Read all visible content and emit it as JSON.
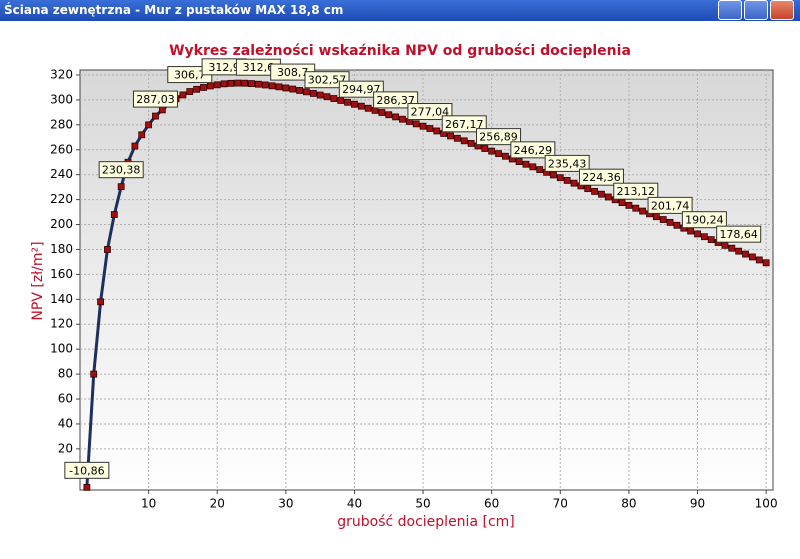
{
  "window": {
    "title": "Ściana zewnętrzna - Mur z pustaków MAX 18,8 cm"
  },
  "chart_data": {
    "type": "line",
    "title": "Wykres zależności wskaźnika NPV od grubości docieplenia",
    "x_label": "grubość docieplenia [cm]",
    "y_label": "NPV [zł/m²]",
    "x": [
      1,
      2,
      3,
      4,
      5,
      6,
      7,
      8,
      9,
      10,
      11,
      12,
      13,
      14,
      15,
      16,
      17,
      18,
      19,
      20,
      21,
      22,
      23,
      24,
      25,
      26,
      27,
      28,
      29,
      30,
      31,
      32,
      33,
      34,
      35,
      36,
      37,
      38,
      39,
      40,
      41,
      42,
      43,
      44,
      45,
      46,
      47,
      48,
      49,
      50,
      51,
      52,
      53,
      54,
      55,
      56,
      57,
      58,
      59,
      60,
      61,
      62,
      63,
      64,
      65,
      66,
      67,
      68,
      69,
      70,
      71,
      72,
      73,
      74,
      75,
      76,
      77,
      78,
      79,
      80,
      81,
      82,
      83,
      84,
      85,
      86,
      87,
      88,
      89,
      90,
      91,
      92,
      93,
      94,
      95,
      96,
      97,
      98,
      99,
      100
    ],
    "values": [
      -10.86,
      80,
      138,
      180,
      208,
      230.38,
      250,
      263,
      272,
      280,
      287.03,
      292,
      297,
      301,
      304,
      306.7,
      308.5,
      310,
      311.2,
      312.1,
      312.9,
      313.3,
      313.5,
      313.4,
      313.1,
      312.6,
      312.0,
      311.3,
      310.5,
      309.6,
      308.7,
      307.6,
      306.5,
      305.2,
      303.9,
      302.57,
      301.1,
      299.6,
      298.1,
      296.5,
      294.97,
      293.3,
      291.6,
      289.9,
      288.1,
      286.37,
      284.5,
      282.7,
      280.8,
      278.9,
      277.04,
      275.1,
      273.1,
      271.1,
      269.2,
      267.17,
      265.1,
      263.1,
      261.0,
      258.9,
      256.89,
      254.8,
      252.6,
      250.5,
      248.4,
      246.29,
      244.1,
      241.9,
      239.8,
      237.6,
      235.43,
      233.2,
      231.0,
      228.8,
      226.6,
      224.36,
      222.1,
      219.9,
      217.6,
      215.4,
      213.12,
      210.8,
      208.6,
      206.3,
      204.0,
      201.74,
      199.4,
      197.1,
      194.8,
      192.5,
      190.24,
      187.9,
      185.6,
      183.3,
      181.0,
      178.64,
      176.3,
      174.0,
      171.6,
      169.3
    ],
    "value_labels": [
      "-10,86",
      null,
      null,
      null,
      null,
      "230,38",
      null,
      null,
      null,
      null,
      "287,03",
      null,
      null,
      null,
      null,
      "306,7",
      null,
      null,
      null,
      null,
      "312,9",
      null,
      null,
      null,
      null,
      "312,6",
      null,
      null,
      null,
      null,
      "308,7",
      null,
      null,
      null,
      null,
      "302,57",
      null,
      null,
      null,
      null,
      "294,97",
      null,
      null,
      null,
      null,
      "286,37",
      null,
      null,
      null,
      null,
      "277,04",
      null,
      null,
      null,
      null,
      "267,17",
      null,
      null,
      null,
      null,
      "256,89",
      null,
      null,
      null,
      null,
      "246,29",
      null,
      null,
      null,
      null,
      "235,43",
      null,
      null,
      null,
      null,
      "224,36",
      null,
      null,
      null,
      null,
      "213,12",
      null,
      null,
      null,
      null,
      "201,74",
      null,
      null,
      null,
      null,
      "190,24",
      null,
      null,
      null,
      null,
      "178,64",
      null,
      null,
      null,
      null
    ],
    "color": "#1c2f5e",
    "marker_color": "#a01010",
    "xlim": [
      0,
      101
    ],
    "ylim": [
      -13,
      324
    ],
    "xticks": [
      10,
      20,
      30,
      40,
      50,
      60,
      70,
      80,
      90,
      100
    ],
    "yticks": [
      20,
      40,
      60,
      80,
      100,
      120,
      140,
      160,
      180,
      200,
      220,
      240,
      260,
      280,
      300,
      320
    ],
    "grid": true
  }
}
